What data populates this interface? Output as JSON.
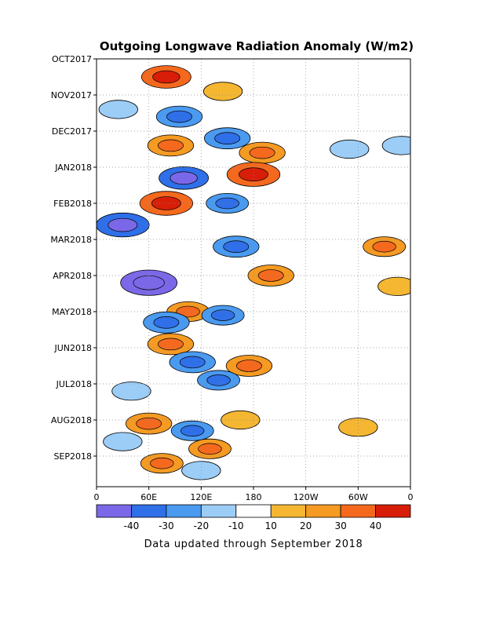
{
  "chart_data": {
    "type": "heatmap",
    "title": "Outgoing Longwave Radiation Anomaly (W/m2)",
    "footer": "Data updated through September 2018",
    "x_axis": {
      "ticks": [
        "0",
        "60E",
        "120E",
        "180",
        "120W",
        "60W",
        "0"
      ],
      "tick_longitudes": [
        0,
        60,
        120,
        180,
        240,
        300,
        360
      ],
      "range": [
        0,
        360
      ]
    },
    "y_axis": {
      "ticks": [
        "OCT2017",
        "NOV2017",
        "DEC2017",
        "JAN2018",
        "FEB2018",
        "MAR2018",
        "APR2018",
        "MAY2018",
        "JUN2018",
        "JUL2018",
        "AUG2018",
        "SEP2018"
      ],
      "range": [
        "OCT2017",
        "SEP2018"
      ]
    },
    "grid": "dotted",
    "colorbar": {
      "labels": [
        "-40",
        "-30",
        "-20",
        "-10",
        "10",
        "20",
        "30",
        "40"
      ],
      "colors": [
        "#7b68e8",
        "#2f6fe8",
        "#4a9af0",
        "#9ccdf7",
        "#ffffff",
        "#f5b731",
        "#f59a22",
        "#f5691e",
        "#d81e08"
      ]
    },
    "anomaly_regions": [
      {
        "lon": 80,
        "month": 0.5,
        "value": 30
      },
      {
        "lon": 145,
        "month": 0.9,
        "value": 15
      },
      {
        "lon": 25,
        "month": 1.4,
        "value": -15
      },
      {
        "lon": 95,
        "month": 1.6,
        "value": -25
      },
      {
        "lon": 150,
        "month": 2.2,
        "value": -25
      },
      {
        "lon": 85,
        "month": 2.4,
        "value": 25
      },
      {
        "lon": 190,
        "month": 2.6,
        "value": 25
      },
      {
        "lon": 290,
        "month": 2.5,
        "value": -15
      },
      {
        "lon": 350,
        "month": 2.4,
        "value": -15
      },
      {
        "lon": 100,
        "month": 3.3,
        "value": -30
      },
      {
        "lon": 180,
        "month": 3.2,
        "value": 35
      },
      {
        "lon": 80,
        "month": 4.0,
        "value": 35
      },
      {
        "lon": 150,
        "month": 4.0,
        "value": -20
      },
      {
        "lon": 30,
        "month": 4.6,
        "value": -35
      },
      {
        "lon": 160,
        "month": 5.2,
        "value": -25
      },
      {
        "lon": 330,
        "month": 5.2,
        "value": 20
      },
      {
        "lon": 60,
        "month": 6.2,
        "value": -40
      },
      {
        "lon": 200,
        "month": 6.0,
        "value": 25
      },
      {
        "lon": 345,
        "month": 6.3,
        "value": 15
      },
      {
        "lon": 105,
        "month": 7.0,
        "value": 20
      },
      {
        "lon": 80,
        "month": 7.3,
        "value": -25
      },
      {
        "lon": 145,
        "month": 7.1,
        "value": -20
      },
      {
        "lon": 85,
        "month": 7.9,
        "value": 25
      },
      {
        "lon": 110,
        "month": 8.4,
        "value": -25
      },
      {
        "lon": 175,
        "month": 8.5,
        "value": 25
      },
      {
        "lon": 140,
        "month": 8.9,
        "value": -20
      },
      {
        "lon": 40,
        "month": 9.2,
        "value": -15
      },
      {
        "lon": 60,
        "month": 10.1,
        "value": 25
      },
      {
        "lon": 110,
        "month": 10.3,
        "value": -20
      },
      {
        "lon": 165,
        "month": 10.0,
        "value": 15
      },
      {
        "lon": 30,
        "month": 10.6,
        "value": -15
      },
      {
        "lon": 130,
        "month": 10.8,
        "value": 20
      },
      {
        "lon": 300,
        "month": 10.2,
        "value": 15
      },
      {
        "lon": 75,
        "month": 11.2,
        "value": 20
      },
      {
        "lon": 120,
        "month": 11.4,
        "value": -15
      }
    ]
  }
}
